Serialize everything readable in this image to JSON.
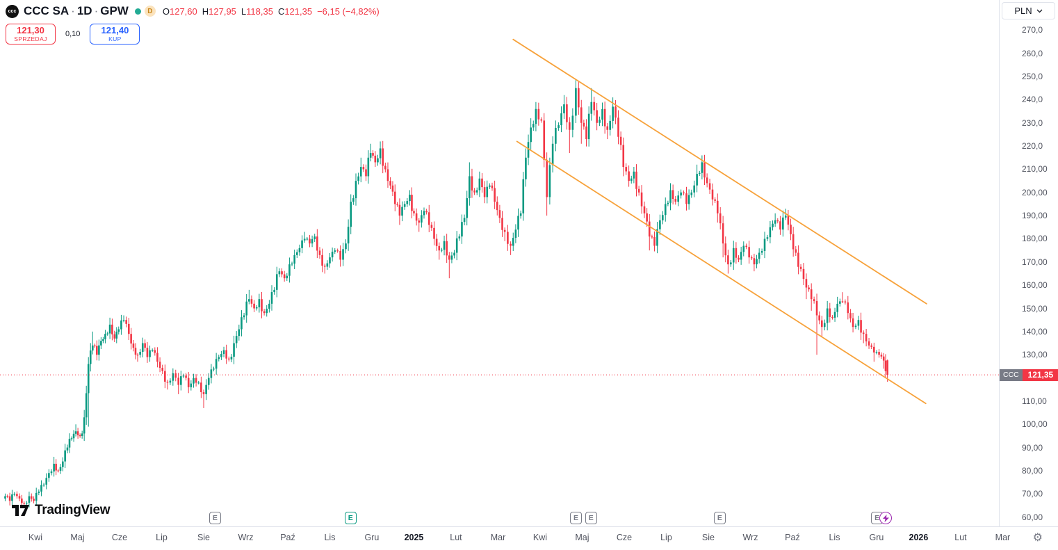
{
  "header": {
    "symbol_short": "ccc",
    "symbol": "CCC SA",
    "separator": "·",
    "timeframe": "1D",
    "exchange": "GPW",
    "delayed_indicator": "D",
    "ohlc": {
      "open_label": "O",
      "open": "127,60",
      "high_label": "H",
      "high": "127,95",
      "low_label": "L",
      "low": "118,35",
      "close_label": "C",
      "close": "121,35",
      "change": "−6,15 (−4,82%)"
    },
    "sell_button": {
      "price": "121,30",
      "label": "SPRZEDAJ"
    },
    "spread": "0,10",
    "buy_button": {
      "price": "121,40",
      "label": "KUP"
    }
  },
  "price_axis": {
    "currency": "PLN",
    "labels": [
      {
        "p": 270,
        "text": "270,0"
      },
      {
        "p": 260,
        "text": "260,0"
      },
      {
        "p": 250,
        "text": "250,0"
      },
      {
        "p": 240,
        "text": "240,0"
      },
      {
        "p": 230,
        "text": "230,0"
      },
      {
        "p": 220,
        "text": "220,0"
      },
      {
        "p": 210,
        "text": "210,00"
      },
      {
        "p": 200,
        "text": "200,00"
      },
      {
        "p": 190,
        "text": "190,00"
      },
      {
        "p": 180,
        "text": "180,00"
      },
      {
        "p": 170,
        "text": "170,00"
      },
      {
        "p": 160,
        "text": "160,00"
      },
      {
        "p": 150,
        "text": "150,00"
      },
      {
        "p": 140,
        "text": "140,00"
      },
      {
        "p": 130,
        "text": "130,00"
      },
      {
        "p": 110,
        "text": "110,00"
      },
      {
        "p": 100,
        "text": "100,00"
      },
      {
        "p": 90,
        "text": "90,00"
      },
      {
        "p": 80,
        "text": "80,00"
      },
      {
        "p": 70,
        "text": "70,00"
      },
      {
        "p": 60,
        "text": "60,00"
      }
    ],
    "badge": {
      "symbol": "CCC",
      "value": "121,35"
    }
  },
  "footer": {
    "logo_text": "TradingView"
  },
  "chart_data": {
    "type": "candlestick",
    "title": "CCC SA · 1D · GPW daily candlestick chart",
    "symbol": "CCC SA",
    "interval": "1D",
    "exchange": "GPW",
    "currency": "PLN",
    "x_unit": "months since April 2024 axis label",
    "xlim": [
      -0.843,
      22.91
    ],
    "ylim": [
      56,
      283
    ],
    "up_color": "#089981",
    "down_color": "#f23645",
    "trendline_color": "#f7a23b",
    "price_line": {
      "value": 121.35,
      "color": "#f23645"
    },
    "last_ohlc": {
      "o": 127.6,
      "h": 127.95,
      "l": 118.35,
      "c": 121.35,
      "change": -6.15,
      "change_pct": -4.82
    },
    "keyframes": [
      [
        -0.72,
        69
      ],
      [
        -0.61,
        67,
        70.5,
        65
      ],
      [
        -0.5,
        70
      ],
      [
        -0.38,
        68
      ],
      [
        -0.27,
        66,
        null,
        64
      ],
      [
        -0.15,
        69
      ],
      [
        -0.04,
        67
      ],
      [
        0.08,
        71
      ],
      [
        0.2,
        74
      ],
      [
        0.32,
        79
      ],
      [
        0.44,
        83,
        86,
        null
      ],
      [
        0.54,
        80
      ],
      [
        0.65,
        84
      ],
      [
        0.76,
        90
      ],
      [
        0.86,
        94
      ],
      [
        0.96,
        97,
        100,
        null
      ],
      [
        1.06,
        95
      ],
      [
        1.16,
        103
      ],
      [
        1.26,
        126,
        129,
        99
      ],
      [
        1.36,
        134,
        140,
        null
      ],
      [
        1.46,
        130
      ],
      [
        1.56,
        136
      ],
      [
        1.66,
        139
      ],
      [
        1.77,
        143,
        146,
        null
      ],
      [
        1.88,
        137
      ],
      [
        1.98,
        141
      ],
      [
        2.1,
        145,
        147,
        null
      ],
      [
        2.22,
        139
      ],
      [
        2.33,
        133
      ],
      [
        2.43,
        130,
        null,
        127
      ],
      [
        2.55,
        135
      ],
      [
        2.66,
        129
      ],
      [
        2.78,
        132
      ],
      [
        2.9,
        127
      ],
      [
        3.02,
        123
      ],
      [
        3.14,
        118,
        null,
        115
      ],
      [
        3.27,
        122
      ],
      [
        3.4,
        117,
        null,
        113
      ],
      [
        3.52,
        121
      ],
      [
        3.64,
        116
      ],
      [
        3.76,
        120
      ],
      [
        3.88,
        118
      ],
      [
        4.0,
        113,
        null,
        107
      ],
      [
        4.12,
        120
      ],
      [
        4.24,
        124
      ],
      [
        4.36,
        129
      ],
      [
        4.48,
        132
      ],
      [
        4.6,
        128
      ],
      [
        4.72,
        135
      ],
      [
        4.84,
        141
      ],
      [
        4.96,
        147
      ],
      [
        5.08,
        154,
        158,
        null
      ],
      [
        5.2,
        150
      ],
      [
        5.32,
        154
      ],
      [
        5.44,
        148
      ],
      [
        5.56,
        152
      ],
      [
        5.68,
        158
      ],
      [
        5.8,
        166
      ],
      [
        5.92,
        163
      ],
      [
        6.04,
        169
      ],
      [
        6.16,
        173
      ],
      [
        6.28,
        176
      ],
      [
        6.4,
        180,
        183,
        null
      ],
      [
        6.52,
        178
      ],
      [
        6.64,
        181
      ],
      [
        6.76,
        173
      ],
      [
        6.88,
        168,
        null,
        165
      ],
      [
        7.0,
        172
      ],
      [
        7.12,
        175
      ],
      [
        7.25,
        171,
        null,
        168
      ],
      [
        7.38,
        178
      ],
      [
        7.5,
        196
      ],
      [
        7.62,
        205
      ],
      [
        7.74,
        211,
        215,
        null
      ],
      [
        7.86,
        207
      ],
      [
        7.97,
        217,
        221,
        null
      ],
      [
        8.08,
        213
      ],
      [
        8.2,
        219,
        222,
        null
      ],
      [
        8.32,
        210
      ],
      [
        8.44,
        203
      ],
      [
        8.55,
        195
      ],
      [
        8.66,
        190,
        null,
        186
      ],
      [
        8.78,
        195
      ],
      [
        8.9,
        199,
        201,
        null
      ],
      [
        9.0,
        191
      ],
      [
        9.12,
        187,
        null,
        183
      ],
      [
        9.24,
        192
      ],
      [
        9.36,
        186
      ],
      [
        9.48,
        180
      ],
      [
        9.6,
        175,
        null,
        171
      ],
      [
        9.72,
        179
      ],
      [
        9.84,
        171,
        null,
        163
      ],
      [
        9.96,
        174
      ],
      [
        10.08,
        181
      ],
      [
        10.2,
        189
      ],
      [
        10.32,
        207,
        213,
        null
      ],
      [
        10.44,
        200
      ],
      [
        10.56,
        206,
        209,
        null
      ],
      [
        10.68,
        198
      ],
      [
        10.8,
        203
      ],
      [
        10.92,
        196
      ],
      [
        11.04,
        189
      ],
      [
        11.16,
        183,
        null,
        179
      ],
      [
        11.3,
        177,
        null,
        173
      ],
      [
        11.42,
        184
      ],
      [
        11.54,
        191
      ],
      [
        11.66,
        215,
        219,
        null
      ],
      [
        11.78,
        228,
        232,
        null
      ],
      [
        11.9,
        236,
        239,
        null
      ],
      [
        12.03,
        231
      ],
      [
        12.16,
        198,
        null,
        190
      ],
      [
        12.3,
        221
      ],
      [
        12.44,
        229
      ],
      [
        12.57,
        238,
        242,
        null
      ],
      [
        12.7,
        227,
        null,
        217
      ],
      [
        12.85,
        245,
        249,
        null
      ],
      [
        12.98,
        230,
        null,
        221
      ],
      [
        13.1,
        223
      ],
      [
        13.22,
        239,
        245,
        null
      ],
      [
        13.35,
        230
      ],
      [
        13.48,
        236
      ],
      [
        13.6,
        227,
        null,
        223
      ],
      [
        13.73,
        237,
        241,
        null
      ],
      [
        13.86,
        224
      ],
      [
        13.98,
        211,
        null,
        207
      ],
      [
        14.11,
        205
      ],
      [
        14.23,
        209
      ],
      [
        14.35,
        200
      ],
      [
        14.48,
        191
      ],
      [
        14.6,
        181,
        null,
        175
      ],
      [
        14.72,
        177
      ],
      [
        14.85,
        188
      ],
      [
        14.98,
        195
      ],
      [
        15.1,
        201,
        204,
        null
      ],
      [
        15.22,
        196
      ],
      [
        15.35,
        200
      ],
      [
        15.48,
        195
      ],
      [
        15.6,
        200
      ],
      [
        15.73,
        208,
        212,
        null
      ],
      [
        15.85,
        213,
        216,
        null
      ],
      [
        15.97,
        204
      ],
      [
        16.1,
        197
      ],
      [
        16.22,
        191,
        null,
        187
      ],
      [
        16.35,
        178,
        null,
        172
      ],
      [
        16.47,
        169,
        null,
        165
      ],
      [
        16.6,
        176
      ],
      [
        16.72,
        171
      ],
      [
        16.84,
        177
      ],
      [
        16.97,
        172
      ],
      [
        17.09,
        169,
        null,
        166
      ],
      [
        17.21,
        174
      ],
      [
        17.34,
        180
      ],
      [
        17.47,
        185
      ],
      [
        17.59,
        188,
        191,
        null
      ],
      [
        17.71,
        184
      ],
      [
        17.84,
        190,
        193,
        null
      ],
      [
        17.96,
        182
      ],
      [
        18.08,
        174
      ],
      [
        18.2,
        167
      ],
      [
        18.33,
        159,
        null,
        154
      ],
      [
        18.45,
        154,
        null,
        149
      ],
      [
        18.58,
        147,
        null,
        130
      ],
      [
        18.7,
        142,
        null,
        138
      ],
      [
        18.83,
        150
      ],
      [
        18.95,
        146
      ],
      [
        19.07,
        152,
        155,
        null
      ],
      [
        19.19,
        153,
        157,
        null
      ],
      [
        19.32,
        148
      ],
      [
        19.44,
        142
      ],
      [
        19.57,
        145
      ],
      [
        19.69,
        139,
        null,
        135
      ],
      [
        19.82,
        134
      ],
      [
        19.94,
        131,
        null,
        127
      ],
      [
        20.06,
        130
      ],
      [
        20.17,
        127.5,
        null,
        124
      ],
      [
        20.26,
        121.35,
        127.95,
        118.35,
        127.6
      ]
    ],
    "trendlines": [
      {
        "x1": 11.36,
        "y1": 266,
        "x2": 21.19,
        "y2": 152
      },
      {
        "x1": 11.45,
        "y1": 222,
        "x2": 21.17,
        "y2": 109
      }
    ],
    "markers": [
      {
        "t": 4.28,
        "type": "earnings",
        "label": "E"
      },
      {
        "t": 7.5,
        "type": "earnings",
        "label": "E",
        "highlight": true
      },
      {
        "t": 12.86,
        "type": "earnings",
        "label": "E"
      },
      {
        "t": 13.22,
        "type": "earnings",
        "label": "E"
      },
      {
        "t": 16.28,
        "type": "earnings",
        "label": "E"
      },
      {
        "t": 20.02,
        "type": "earnings",
        "label": "E"
      },
      {
        "t": 20.22,
        "type": "bolt"
      }
    ],
    "time_axis_labels": [
      {
        "t": 0,
        "text": "Kwi"
      },
      {
        "t": 1,
        "text": "Maj"
      },
      {
        "t": 2,
        "text": "Cze"
      },
      {
        "t": 3,
        "text": "Lip"
      },
      {
        "t": 4,
        "text": "Sie"
      },
      {
        "t": 5,
        "text": "Wrz"
      },
      {
        "t": 6,
        "text": "Paź"
      },
      {
        "t": 7,
        "text": "Lis"
      },
      {
        "t": 8,
        "text": "Gru"
      },
      {
        "t": 9,
        "text": "2025",
        "year": true
      },
      {
        "t": 10,
        "text": "Lut"
      },
      {
        "t": 11,
        "text": "Mar"
      },
      {
        "t": 12,
        "text": "Kwi"
      },
      {
        "t": 13,
        "text": "Maj"
      },
      {
        "t": 14,
        "text": "Cze"
      },
      {
        "t": 15,
        "text": "Lip"
      },
      {
        "t": 16,
        "text": "Sie"
      },
      {
        "t": 17,
        "text": "Wrz"
      },
      {
        "t": 18,
        "text": "Paź"
      },
      {
        "t": 19,
        "text": "Lis"
      },
      {
        "t": 20,
        "text": "Gru"
      },
      {
        "t": 21,
        "text": "2026",
        "year": true
      },
      {
        "t": 22,
        "text": "Lut"
      },
      {
        "t": 23,
        "text": "Mar"
      }
    ]
  }
}
